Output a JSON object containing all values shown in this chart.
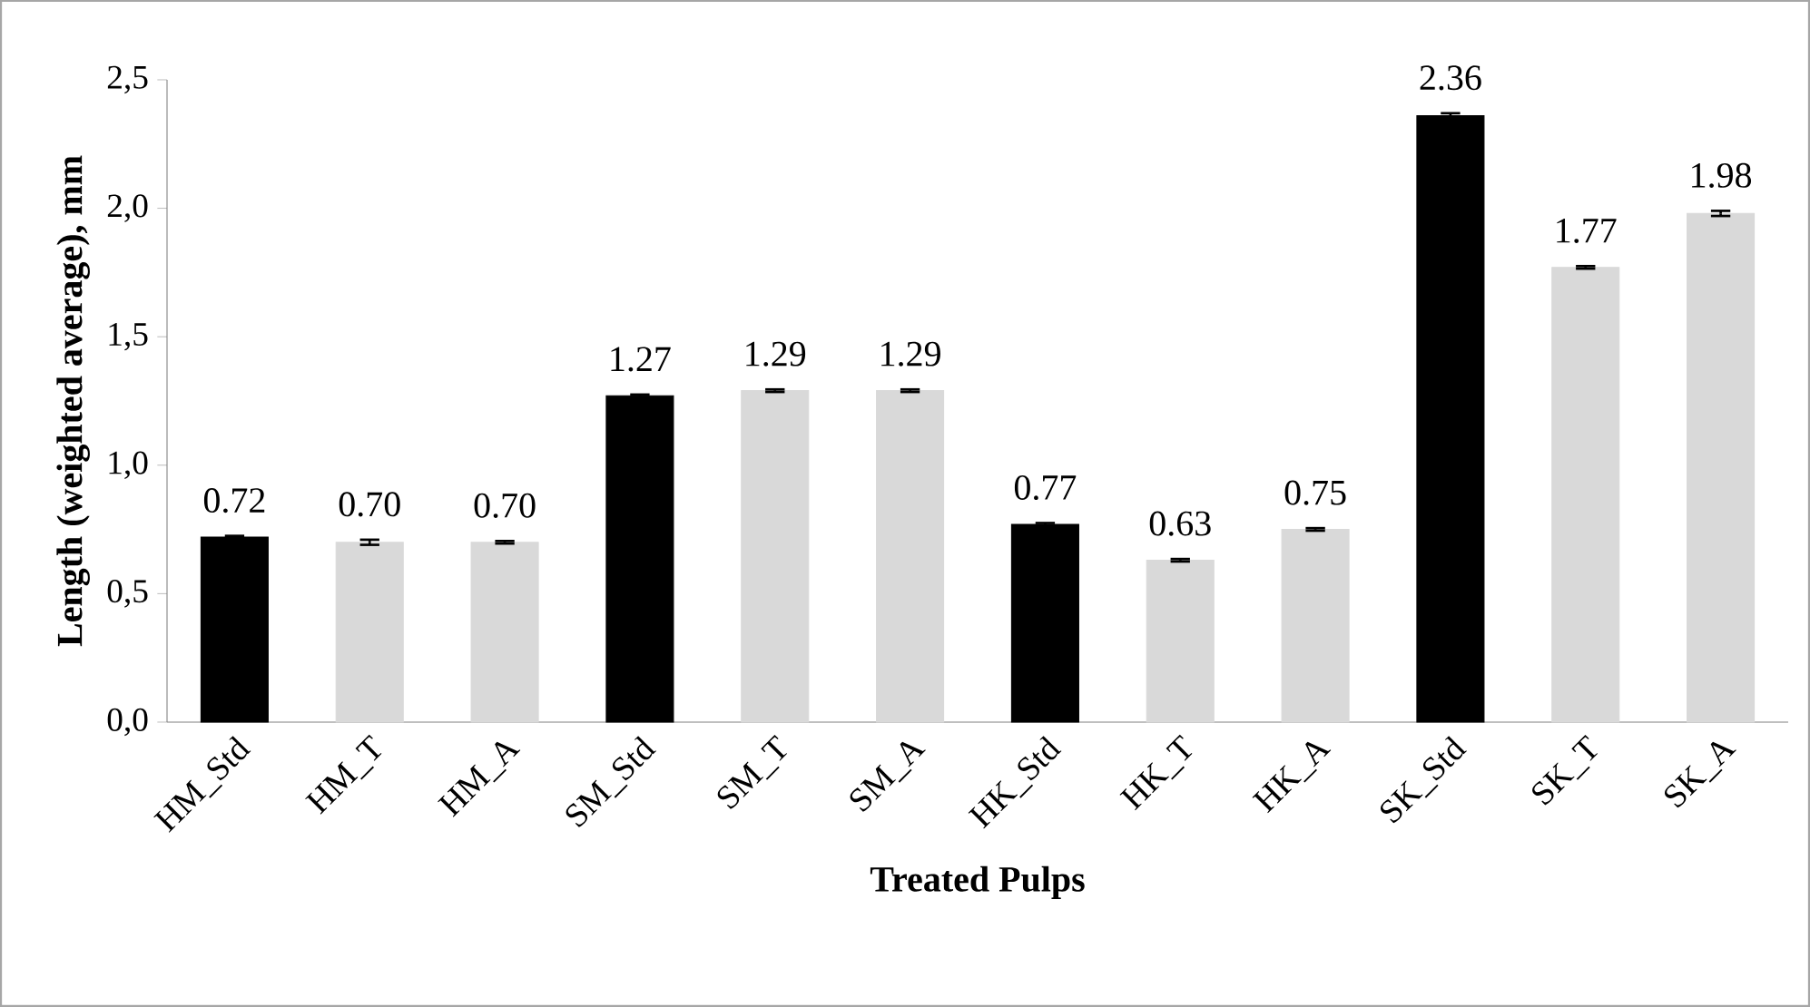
{
  "chart_data": {
    "type": "bar",
    "xlabel": "Treated Pulps",
    "ylabel": "Length (weighted average), mm",
    "categories": [
      "HM_Std",
      "HM_T",
      "HM_A",
      "SM_Std",
      "SM_T",
      "SM_A",
      "HK_Std",
      "HK_T",
      "HK_A",
      "SK_Std",
      "SK_T",
      "SK_A"
    ],
    "values": [
      0.72,
      0.7,
      0.7,
      1.27,
      1.29,
      1.29,
      0.77,
      0.63,
      0.75,
      2.36,
      1.77,
      1.98
    ],
    "errors": [
      0.005,
      0.01,
      0.005,
      0.005,
      0.005,
      0.005,
      0.005,
      0.005,
      0.005,
      0.01,
      0.005,
      0.01
    ],
    "colors": [
      "#000000",
      "#d9d9d9",
      "#d9d9d9",
      "#000000",
      "#d9d9d9",
      "#d9d9d9",
      "#000000",
      "#d9d9d9",
      "#d9d9d9",
      "#000000",
      "#d9d9d9",
      "#d9d9d9"
    ],
    "ylim": [
      0,
      2.5
    ],
    "yticks": [
      {
        "value": 0,
        "label": "0,0"
      },
      {
        "value": 0.5,
        "label": "0,5"
      },
      {
        "value": 1.0,
        "label": "1,0"
      },
      {
        "value": 1.5,
        "label": "1,5"
      },
      {
        "value": 2.0,
        "label": "2,0"
      },
      {
        "value": 2.5,
        "label": "2,5"
      }
    ],
    "value_labels": [
      "0.72",
      "0.70",
      "0.70",
      "1.27",
      "1.29",
      "1.29",
      "0.77",
      "0.63",
      "0.75",
      "2.36",
      "1.77",
      "1.98"
    ],
    "grid": false
  }
}
